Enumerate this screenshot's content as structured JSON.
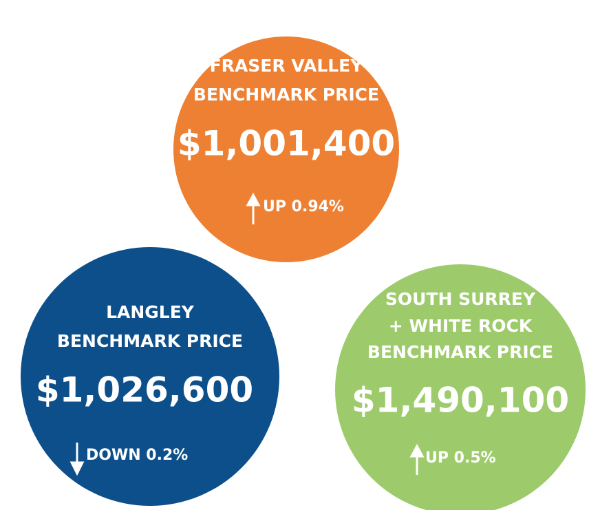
{
  "circles": [
    {
      "title_lines": [
        "FRASER VALLEY",
        "BENCHMARK PRICE"
      ],
      "price": "$1,001,400",
      "change": "UP 0.94%"
    },
    {
      "title_lines": [
        "LANGLEY",
        "BENCHMARK PRICE"
      ],
      "price": "$1,026,600",
      "change": "DOWN 0.2%"
    },
    {
      "title_lines": [
        "SOUTH SURREY",
        "+ WHITE ROCK",
        "BENCHMARK PRICE"
      ],
      "price": "$1,490,100",
      "change": "UP 0.5%"
    }
  ]
}
